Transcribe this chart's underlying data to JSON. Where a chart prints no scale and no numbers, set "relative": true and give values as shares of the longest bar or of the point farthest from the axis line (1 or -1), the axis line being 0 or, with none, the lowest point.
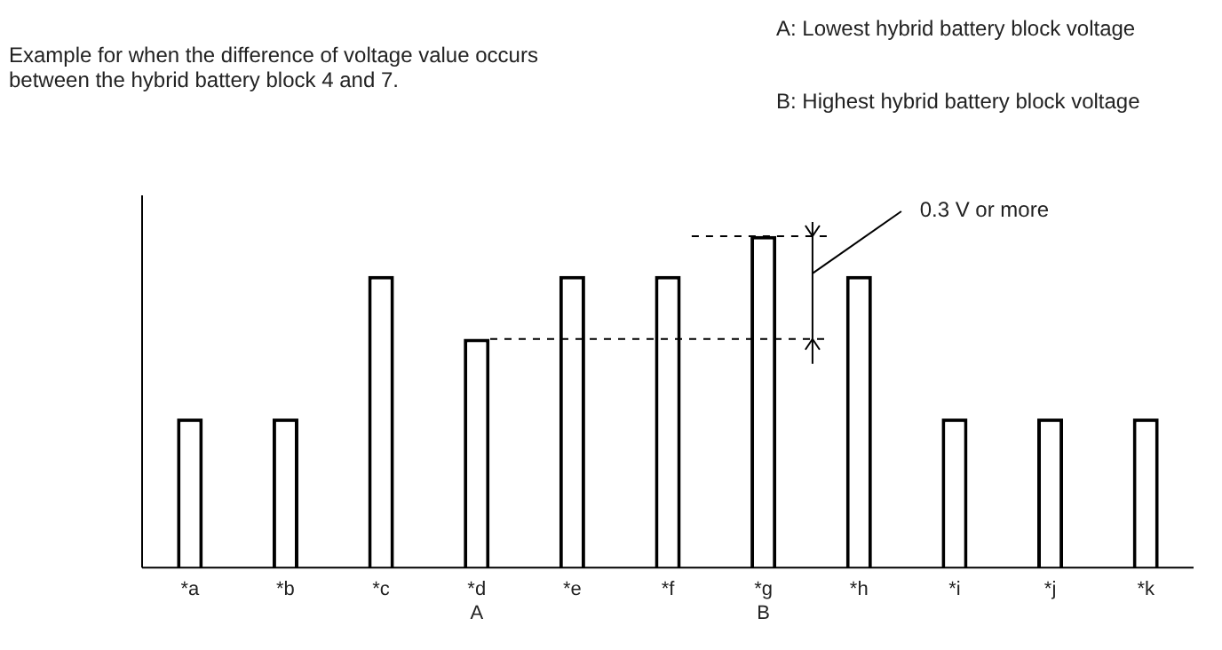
{
  "chart_data": {
    "type": "bar",
    "relative": true,
    "title": "Example for when the difference of voltage value occurs between the hybrid battery block 4 and 7.",
    "categories": [
      "*a",
      "*b",
      "*c",
      "*d\nA",
      "*e",
      "*f",
      "*g\nB",
      "*h",
      "*i",
      "*j",
      "*k"
    ],
    "values": [
      0.45,
      0.45,
      0.88,
      0.69,
      0.88,
      0.88,
      1,
      0.88,
      0.45,
      0.45,
      0.45
    ],
    "color": "#ffffff",
    "annotations": [
      "A: Lowest hybrid battery block voltage",
      "B: Highest hybrid battery block voltage",
      "0.3 V or more"
    ],
    "grid": false,
    "legend": false
  }
}
